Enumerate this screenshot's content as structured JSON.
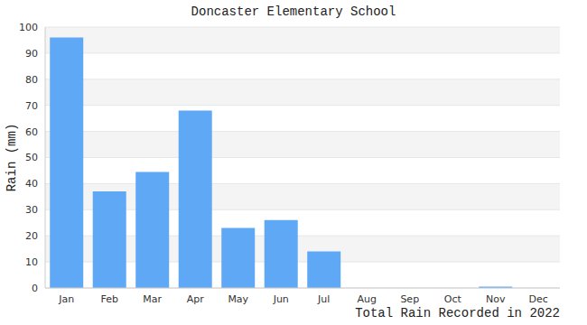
{
  "chart_data": {
    "type": "bar",
    "title": "Doncaster Elementary School",
    "x_label": "Total Rain Recorded in 2022",
    "y_label": "Rain (mm)",
    "categories": [
      "Jan",
      "Feb",
      "Mar",
      "Apr",
      "May",
      "Jun",
      "Jul",
      "Aug",
      "Sep",
      "Oct",
      "Nov",
      "Dec"
    ],
    "values": [
      96,
      37,
      44.5,
      68,
      23,
      26,
      14,
      0,
      0,
      0,
      0.5,
      0
    ],
    "color": "#5fa8f5",
    "ylim": [
      0,
      100
    ],
    "yticks": [
      0,
      10,
      20,
      30,
      40,
      50,
      60,
      70,
      80,
      90,
      100
    ],
    "grid": true
  }
}
